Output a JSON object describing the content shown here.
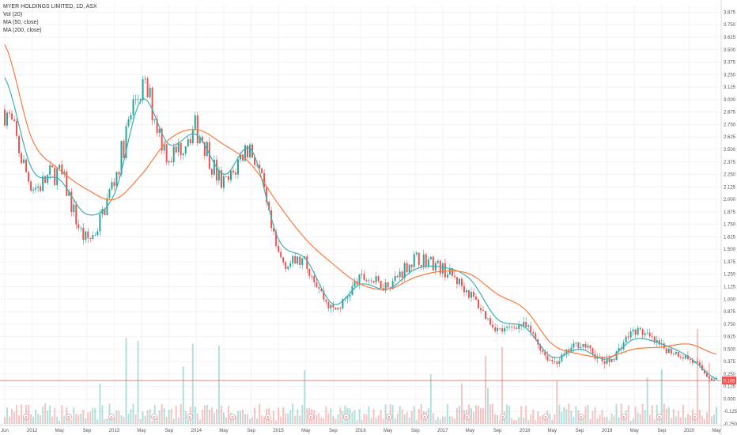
{
  "legend": {
    "symbol": "MYER HOLDINGS LIMITED, 1D, ASX",
    "vol": "Vol (20)",
    "ma50": "MA (50, close)",
    "ma200": "MA (200, close)"
  },
  "price_tag": "0.185",
  "event_marker_label": "E",
  "colors": {
    "up": "#26a69a",
    "down": "#ef5350",
    "ma50": "#3cb0b7",
    "ma200": "#ff7a3d",
    "grid": "#f1f3f6",
    "axis_text": "#555555",
    "price_line": "#ef5350"
  },
  "chart_data": {
    "type": "line",
    "title": "MYER HOLDINGS LIMITED, 1D, ASX",
    "x_ticks": [
      "Jun",
      "2012",
      "May",
      "Sep",
      "2013",
      "May",
      "Sep",
      "2014",
      "May",
      "Sep",
      "2015",
      "May",
      "Sep",
      "2016",
      "May",
      "Sep",
      "2017",
      "May",
      "Sep",
      "2018",
      "May",
      "Sep",
      "2019",
      "May",
      "Sep",
      "2020",
      "May"
    ],
    "y_ticks": [
      "3.875",
      "3.750",
      "3.625",
      "3.500",
      "3.375",
      "3.250",
      "3.125",
      "3.000",
      "2.875",
      "2.750",
      "2.625",
      "2.500",
      "2.375",
      "2.250",
      "2.125",
      "2.000",
      "1.875",
      "1.750",
      "1.625",
      "1.500",
      "1.375",
      "1.250",
      "1.125",
      "1.000",
      "0.875",
      "0.750",
      "0.625",
      "0.500",
      "0.375",
      "0.250",
      "0.125",
      "0.000",
      "-0.125",
      "-0.250"
    ],
    "ylim": [
      -0.25,
      3.95
    ],
    "grid": true,
    "series": [
      {
        "name": "MA (50, close)",
        "type": "line",
        "x": [
          "Jun",
          "2012",
          "May",
          "Sep",
          "2013",
          "May",
          "Sep",
          "2014",
          "May",
          "Sep",
          "2015",
          "May",
          "Sep",
          "2016",
          "May",
          "Sep",
          "2017",
          "May",
          "Sep",
          "2018",
          "May",
          "Sep",
          "2019",
          "May",
          "Sep",
          "2020",
          "May"
        ],
        "values": [
          3.22,
          2.3,
          2.2,
          1.85,
          2.05,
          3.0,
          2.55,
          2.65,
          2.25,
          2.5,
          1.6,
          1.4,
          0.95,
          1.15,
          1.1,
          1.3,
          1.32,
          1.2,
          0.8,
          0.72,
          0.42,
          0.5,
          0.4,
          0.6,
          0.55,
          0.42,
          0.2
        ]
      },
      {
        "name": "MA (200, close)",
        "type": "line",
        "x": [
          "Jun",
          "2012",
          "May",
          "Sep",
          "2013",
          "May",
          "Sep",
          "2014",
          "May",
          "Sep",
          "2015",
          "May",
          "Sep",
          "2016",
          "May",
          "Sep",
          "2017",
          "May",
          "Sep",
          "2018",
          "May",
          "Sep",
          "2019",
          "May",
          "Sep",
          "2020",
          "May"
        ],
        "values": [
          3.55,
          2.6,
          2.3,
          2.1,
          2.0,
          2.25,
          2.6,
          2.7,
          2.55,
          2.35,
          1.95,
          1.6,
          1.35,
          1.15,
          1.1,
          1.22,
          1.28,
          1.25,
          1.05,
          0.9,
          0.55,
          0.45,
          0.42,
          0.5,
          0.52,
          0.55,
          0.45
        ]
      },
      {
        "name": "Price",
        "type": "candlestick",
        "x": [
          "Jun",
          "2012",
          "May",
          "Sep",
          "2013",
          "May",
          "Sep",
          "2014",
          "May",
          "Sep",
          "2015",
          "May",
          "Sep",
          "2016",
          "May",
          "Sep",
          "2017",
          "May",
          "Sep",
          "2018",
          "May",
          "Sep",
          "2019",
          "May",
          "Sep",
          "2020",
          "May"
        ],
        "values": [
          2.9,
          2.15,
          2.25,
          1.6,
          2.2,
          3.1,
          2.45,
          2.7,
          2.15,
          2.5,
          1.45,
          1.35,
          0.9,
          1.2,
          1.15,
          1.4,
          1.3,
          1.05,
          0.7,
          0.73,
          0.38,
          0.55,
          0.37,
          0.68,
          0.52,
          0.4,
          0.185
        ]
      }
    ],
    "volume_label": "Vol (20)",
    "last_value": 0.185
  }
}
